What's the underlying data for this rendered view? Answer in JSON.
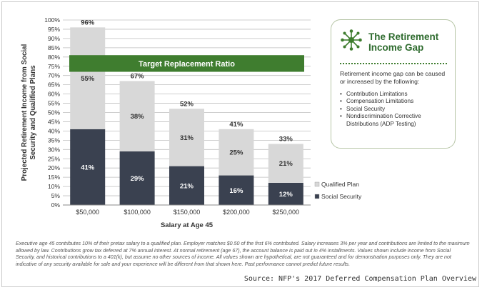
{
  "chart_data": {
    "type": "bar",
    "stacked": true,
    "categories": [
      "$50,000",
      "$100,000",
      "$150,000",
      "$200,000",
      "$250,000"
    ],
    "series": [
      {
        "name": "Social Security",
        "values": [
          41,
          29,
          21,
          16,
          12
        ],
        "color": "#3a4150"
      },
      {
        "name": "Qualified Plan",
        "values": [
          55,
          38,
          31,
          25,
          21
        ],
        "color": "#d8d8d8"
      }
    ],
    "totals": [
      96,
      67,
      52,
      41,
      33
    ],
    "segment_labels": {
      "social_security": [
        "41%",
        "29%",
        "21%",
        "16%",
        "12%"
      ],
      "qualified_plan": [
        "55%",
        "38%",
        "31%",
        "25%",
        "21%"
      ],
      "totals": [
        "96%",
        "67%",
        "52%",
        "41%",
        "33%"
      ]
    },
    "target_band": {
      "label": "Target Replacement Ratio",
      "from": 72,
      "to": 81,
      "color": "#3f7d2f"
    },
    "ylim": [
      0,
      100
    ],
    "yticks": [
      0,
      5,
      10,
      15,
      20,
      25,
      30,
      35,
      40,
      45,
      50,
      55,
      60,
      65,
      70,
      75,
      80,
      85,
      90,
      95,
      100
    ],
    "ytick_labels": [
      "0%",
      "5%",
      "10%",
      "15%",
      "20%",
      "25%",
      "30%",
      "35%",
      "40%",
      "45%",
      "50%",
      "55%",
      "60%",
      "65%",
      "70%",
      "75%",
      "80%",
      "85%",
      "90%",
      "95%",
      "100%"
    ],
    "xlabel": "Salary at Age 45",
    "ylabel_lines": [
      "Projected Retirement Income from Social",
      "Security and Qualified Plans"
    ],
    "grid": true,
    "legend_position": "right",
    "legend": [
      "Qualified Plan",
      "Social Security"
    ]
  },
  "card": {
    "title": "The Retirement Income Gap",
    "icon": "network-icon",
    "intro": "Retirement income gap can be caused or increased by the following:",
    "items": [
      "Contribution Limitations",
      "Compensation Limitations",
      "Social Security",
      "Nondiscrimination Corrective Distributions (ADP Testing)"
    ]
  },
  "footnote": "Executive age 45 contributes 10% of their pretax salary to a qualified plan. Employer matches $0.50 of the first 6% contributed. Salary increases 3% per year and contributions are limited to the maximum allowed by law. Contributions grow tax deferred at 7% annual interest. At normal retirement (age 67), the account balance is paid out in 4% installments. Values shown include income from Social Security, and historical contributions to a 401(k), but assume no other sources of income. All values shown are hypothetical, are not guaranteed and for demonstration purposes only. They are not indicative of any security available for sale and your experience will be different from that shown here. Past performance cannot predict future results.",
  "source": "Source: NFP's 2017 Deferred Compensation Plan Overview"
}
